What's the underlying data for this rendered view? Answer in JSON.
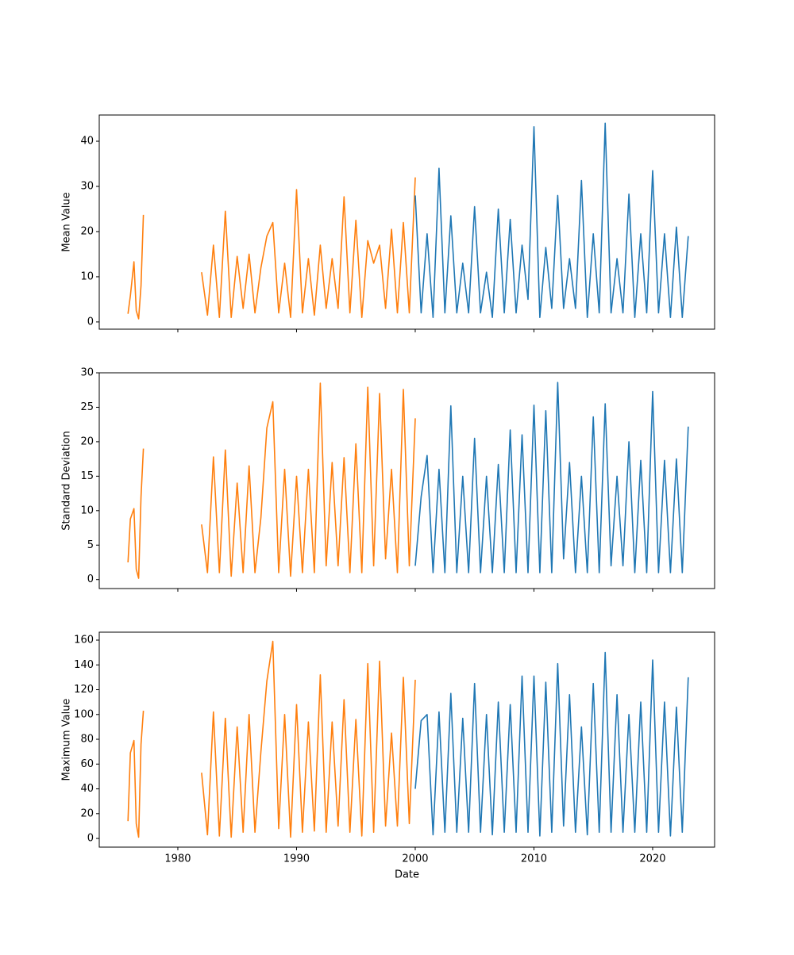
{
  "chart_data": [
    {
      "type": "line",
      "ylabel": "Mean Value",
      "xlim": [
        1973.38,
        2025.22
      ],
      "ylim": [
        -1.6,
        45.8
      ],
      "yticks": [
        0,
        10,
        20,
        30,
        40
      ],
      "series": [
        {
          "color": "#ff7f0e",
          "x": [
            1975.8,
            1976.0,
            1976.3,
            1976.5,
            1976.7,
            1976.9,
            1977.1,
            1979.5,
            1982.0,
            1982.5,
            1983.0,
            1983.5,
            1984.0,
            1984.5,
            1985.0,
            1985.5,
            1986.0,
            1986.5,
            1987.0,
            1987.5,
            1988.0,
            1988.5,
            1989.0,
            1989.5,
            1990.0,
            1990.5,
            1991.0,
            1991.5,
            1992.0,
            1992.5,
            1993.0,
            1993.5,
            1994.0,
            1994.5,
            1995.0,
            1995.5,
            1996.0,
            1996.5,
            1997.0,
            1997.5,
            1998.0,
            1998.5,
            1999.0,
            1999.5,
            2000.0
          ],
          "values": [
            1.8,
            5.8,
            13.3,
            2.5,
            0.7,
            8.0,
            23.7,
            null,
            11,
            1.5,
            17,
            1,
            24.5,
            1,
            14.5,
            3,
            15,
            2,
            12,
            19,
            22,
            2,
            13,
            1,
            29.3,
            2,
            14,
            1.5,
            17,
            3,
            14,
            3,
            27.7,
            2,
            22.5,
            1,
            18,
            13,
            17,
            3,
            20.5,
            2,
            22,
            2,
            32
          ]
        },
        {
          "color": "#1f77b4",
          "x": [
            2000.0,
            2000.5,
            2001.0,
            2001.5,
            2002.0,
            2002.5,
            2003.0,
            2003.5,
            2004.0,
            2004.5,
            2005.0,
            2005.5,
            2006.0,
            2006.5,
            2007.0,
            2007.5,
            2008.0,
            2008.5,
            2009.0,
            2009.5,
            2010.0,
            2010.5,
            2011.0,
            2011.5,
            2012.0,
            2012.5,
            2013.0,
            2013.5,
            2014.0,
            2014.5,
            2015.0,
            2015.5,
            2016.0,
            2016.5,
            2017.0,
            2017.5,
            2018.0,
            2018.5,
            2019.0,
            2019.5,
            2020.0,
            2020.5,
            2021.0,
            2021.5,
            2022.0,
            2022.5,
            2023.0
          ],
          "values": [
            28,
            2,
            19.5,
            1,
            34,
            2,
            23.5,
            2,
            13,
            2,
            25.5,
            2,
            11,
            1,
            25,
            2,
            22.7,
            2,
            17,
            5,
            43.2,
            1,
            16.5,
            3,
            28,
            3,
            14,
            3,
            31.3,
            1,
            19.5,
            2,
            44,
            2,
            14,
            2,
            28.3,
            1,
            19.5,
            2,
            33.5,
            2,
            19.5,
            1,
            21,
            1,
            19
          ]
        }
      ]
    },
    {
      "type": "line",
      "ylabel": "Standard Deviation",
      "xlim": [
        1973.38,
        2025.22
      ],
      "ylim": [
        -1.3,
        30
      ],
      "yticks": [
        0,
        5,
        10,
        15,
        20,
        25,
        30
      ],
      "series": [
        {
          "color": "#ff7f0e",
          "x": [
            1975.8,
            1976.0,
            1976.3,
            1976.5,
            1976.7,
            1976.9,
            1977.1,
            1979.5,
            1982.0,
            1982.5,
            1983.0,
            1983.5,
            1984.0,
            1984.5,
            1985.0,
            1985.5,
            1986.0,
            1986.5,
            1987.0,
            1987.5,
            1988.0,
            1988.5,
            1989.0,
            1989.5,
            1990.0,
            1990.5,
            1991.0,
            1991.5,
            1992.0,
            1992.5,
            1993.0,
            1993.5,
            1994.0,
            1994.5,
            1995.0,
            1995.5,
            1996.0,
            1996.5,
            1997.0,
            1997.5,
            1998.0,
            1998.5,
            1999.0,
            1999.5,
            2000.0
          ],
          "values": [
            2.5,
            8.8,
            10.3,
            1.5,
            0.2,
            12,
            19,
            null,
            8,
            1,
            17.8,
            1,
            18.8,
            0.5,
            14,
            1,
            16.5,
            1,
            9,
            22,
            25.8,
            1,
            16,
            0.5,
            15,
            1,
            16,
            1,
            28.5,
            2,
            17,
            2,
            17.7,
            1,
            19.7,
            1,
            27.9,
            2,
            27,
            3,
            16,
            1,
            27.6,
            2,
            23.4
          ]
        },
        {
          "color": "#1f77b4",
          "x": [
            2000.0,
            2000.5,
            2001.0,
            2001.5,
            2002.0,
            2002.5,
            2003.0,
            2003.5,
            2004.0,
            2004.5,
            2005.0,
            2005.5,
            2006.0,
            2006.5,
            2007.0,
            2007.5,
            2008.0,
            2008.5,
            2009.0,
            2009.5,
            2010.0,
            2010.5,
            2011.0,
            2011.5,
            2012.0,
            2012.5,
            2013.0,
            2013.5,
            2014.0,
            2014.5,
            2015.0,
            2015.5,
            2016.0,
            2016.5,
            2017.0,
            2017.5,
            2018.0,
            2018.5,
            2019.0,
            2019.5,
            2020.0,
            2020.5,
            2021.0,
            2021.5,
            2022.0,
            2022.5,
            2023.0
          ],
          "values": [
            2,
            12,
            18,
            1,
            16,
            1,
            25.2,
            1,
            15,
            1,
            20.5,
            1,
            15,
            1,
            16.7,
            1,
            21.7,
            1,
            21,
            1,
            25.3,
            1,
            24.5,
            1,
            28.6,
            3,
            17,
            1,
            15,
            1,
            23.6,
            1,
            25.5,
            2,
            15,
            2,
            20,
            1,
            17.3,
            1,
            27.3,
            1,
            17.3,
            1,
            17.5,
            1,
            22.2
          ]
        }
      ]
    },
    {
      "type": "line",
      "ylabel": "Maximum Value",
      "xlabel": "Date",
      "xlim": [
        1973.38,
        2025.22
      ],
      "xticks": [
        1980,
        1990,
        2000,
        2010,
        2020
      ],
      "ylim": [
        -7,
        166.4
      ],
      "yticks": [
        0,
        20,
        40,
        60,
        80,
        100,
        120,
        140,
        160
      ],
      "series": [
        {
          "color": "#ff7f0e",
          "x": [
            1975.8,
            1976.0,
            1976.3,
            1976.5,
            1976.7,
            1976.9,
            1977.1,
            1979.5,
            1982.0,
            1982.5,
            1983.0,
            1983.5,
            1984.0,
            1984.5,
            1985.0,
            1985.5,
            1986.0,
            1986.5,
            1987.0,
            1987.5,
            1988.0,
            1988.5,
            1989.0,
            1989.5,
            1990.0,
            1990.5,
            1991.0,
            1991.5,
            1992.0,
            1992.5,
            1993.0,
            1993.5,
            1994.0,
            1994.5,
            1995.0,
            1995.5,
            1996.0,
            1996.5,
            1997.0,
            1997.5,
            1998.0,
            1998.5,
            1999.0,
            1999.5,
            2000.0
          ],
          "values": [
            14,
            69,
            79,
            12,
            1,
            76,
            103,
            null,
            53,
            3,
            102,
            2,
            97,
            1,
            90,
            5,
            100,
            5,
            70,
            127,
            159,
            8,
            100,
            1,
            108,
            5,
            94,
            6,
            132,
            5,
            94,
            10,
            112,
            5,
            96,
            2,
            141,
            5,
            143,
            10,
            85,
            10,
            130,
            12,
            128
          ]
        },
        {
          "color": "#1f77b4",
          "x": [
            2000.0,
            2000.5,
            2001.0,
            2001.5,
            2002.0,
            2002.5,
            2003.0,
            2003.5,
            2004.0,
            2004.5,
            2005.0,
            2005.5,
            2006.0,
            2006.5,
            2007.0,
            2007.5,
            2008.0,
            2008.5,
            2009.0,
            2009.5,
            2010.0,
            2010.5,
            2011.0,
            2011.5,
            2012.0,
            2012.5,
            2013.0,
            2013.5,
            2014.0,
            2014.5,
            2015.0,
            2015.5,
            2016.0,
            2016.5,
            2017.0,
            2017.5,
            2018.0,
            2018.5,
            2019.0,
            2019.5,
            2020.0,
            2020.5,
            2021.0,
            2021.5,
            2022.0,
            2022.5,
            2023.0
          ],
          "values": [
            40,
            95,
            100,
            3,
            102,
            5,
            117,
            5,
            97,
            5,
            125,
            5,
            100,
            3,
            110,
            5,
            108,
            5,
            131,
            5,
            131,
            2,
            126,
            5,
            141,
            10,
            116,
            5,
            90,
            3,
            125,
            5,
            150,
            5,
            116,
            5,
            100,
            5,
            110,
            5,
            144,
            5,
            110,
            2,
            106,
            5,
            130
          ]
        }
      ]
    }
  ]
}
